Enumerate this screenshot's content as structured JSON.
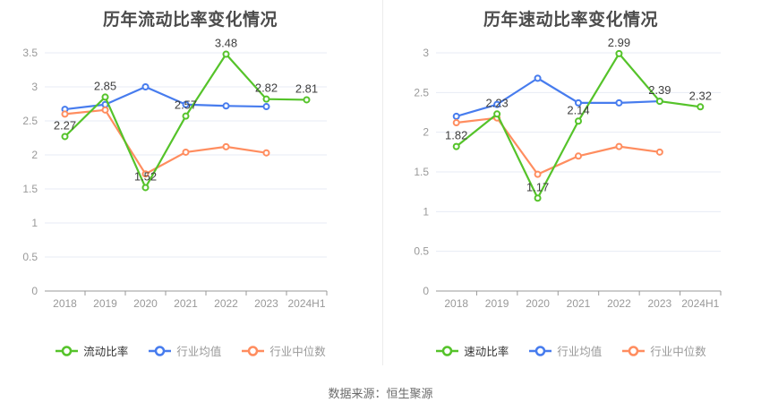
{
  "page": {
    "source_label": "数据来源：恒生聚源"
  },
  "colors": {
    "green": "#55c32a",
    "blue": "#477cee",
    "orange": "#ff8d5f",
    "grid": "#e7ebf4",
    "axis": "#999999",
    "tick_label": "#999999",
    "data_label": "#3f3f3f",
    "title": "#4c4c4c",
    "divider": "#ececec"
  },
  "chart_data": [
    {
      "type": "line",
      "title": "历年流动比率变化情况",
      "xlabel": "",
      "ylabel": "",
      "categories": [
        "2018",
        "2019",
        "2020",
        "2021",
        "2022",
        "2023",
        "2024H1"
      ],
      "ylim": [
        0,
        3.5
      ],
      "ytick_step": 0.5,
      "grid": true,
      "legend_position": "bottom",
      "series": [
        {
          "name": "流动比率",
          "color": "#55c32a",
          "values": [
            2.27,
            2.85,
            1.52,
            2.57,
            3.48,
            2.82,
            2.81
          ],
          "labels": [
            "2.27",
            "2.85",
            "1.52",
            "2.57",
            "3.48",
            "2.82",
            "2.81"
          ]
        },
        {
          "name": "行业均值",
          "color": "#477cee",
          "values": [
            2.67,
            2.74,
            3.0,
            2.74,
            2.72,
            2.71
          ]
        },
        {
          "name": "行业中位数",
          "color": "#ff8d5f",
          "values": [
            2.6,
            2.66,
            1.72,
            2.04,
            2.12,
            2.03
          ]
        }
      ]
    },
    {
      "type": "line",
      "title": "历年速动比率变化情况",
      "xlabel": "",
      "ylabel": "",
      "categories": [
        "2018",
        "2019",
        "2020",
        "2021",
        "2022",
        "2023",
        "2024H1"
      ],
      "ylim": [
        0,
        3
      ],
      "ytick_step": 0.5,
      "grid": true,
      "legend_position": "bottom",
      "series": [
        {
          "name": "速动比率",
          "color": "#55c32a",
          "values": [
            1.82,
            2.23,
            1.17,
            2.14,
            2.99,
            2.39,
            2.32
          ],
          "labels": [
            "1.82",
            "2.23",
            "1.17",
            "2.14",
            "2.99",
            "2.39",
            "2.32"
          ]
        },
        {
          "name": "行业均值",
          "color": "#477cee",
          "values": [
            2.2,
            2.35,
            2.68,
            2.37,
            2.37,
            2.39
          ]
        },
        {
          "name": "行业中位数",
          "color": "#ff8d5f",
          "values": [
            2.12,
            2.18,
            1.47,
            1.7,
            1.82,
            1.75
          ]
        }
      ]
    }
  ]
}
